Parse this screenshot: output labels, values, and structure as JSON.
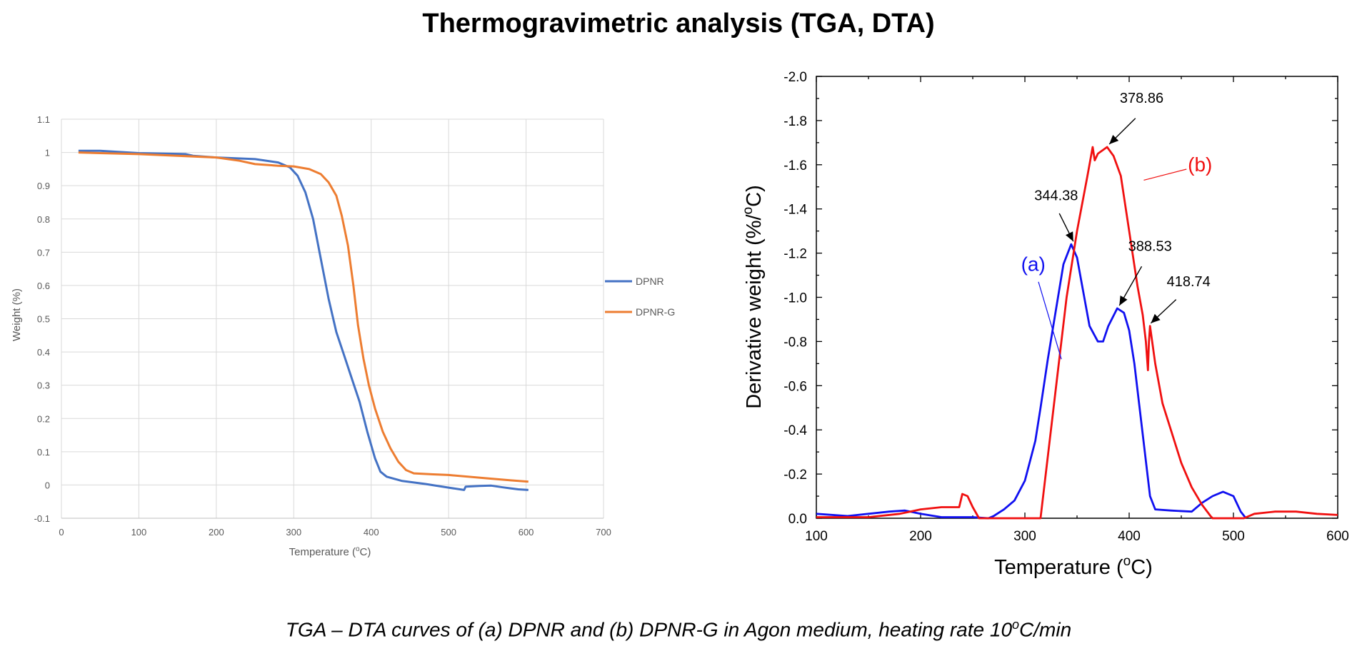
{
  "page": {
    "title": "Thermogravimetric analysis (TGA, DTA)",
    "caption_pre": "TGA – DTA curves of (a) DPNR and (b) DPNR-G in Agon medium, heating rate 10",
    "caption_sup": "o",
    "caption_post": "C/min"
  },
  "chart_data": [
    {
      "type": "line",
      "xlabel_pre": "Temperature (",
      "xlabel_sup": "o",
      "xlabel_post": "C)",
      "ylabel": "Weight (%)",
      "xlim": [
        0,
        700
      ],
      "ylim": [
        -0.1,
        1.1
      ],
      "xticks": [
        0,
        100,
        200,
        300,
        400,
        500,
        600,
        700
      ],
      "yticks": [
        -0.1,
        0,
        0.1,
        0.2,
        0.3,
        0.4,
        0.5,
        0.6,
        0.7,
        0.8,
        0.9,
        1,
        1.1
      ],
      "ytick_labels": [
        "-0.1",
        "0",
        "0.1",
        "0.2",
        "0.3",
        "0.4",
        "0.5",
        "0.6",
        "0.7",
        "0.8",
        "0.9",
        "1",
        "1.1"
      ],
      "grid": true,
      "legend_position": "right",
      "series": [
        {
          "name": "DPNR",
          "color": "#4472C4",
          "points": [
            [
              22,
              1.005
            ],
            [
              50,
              1.005
            ],
            [
              100,
              0.998
            ],
            [
              160,
              0.995
            ],
            [
              170,
              0.99
            ],
            [
              200,
              0.985
            ],
            [
              250,
              0.98
            ],
            [
              280,
              0.97
            ],
            [
              295,
              0.955
            ],
            [
              305,
              0.93
            ],
            [
              315,
              0.88
            ],
            [
              325,
              0.8
            ],
            [
              335,
              0.68
            ],
            [
              345,
              0.56
            ],
            [
              355,
              0.46
            ],
            [
              365,
              0.39
            ],
            [
              375,
              0.32
            ],
            [
              385,
              0.25
            ],
            [
              395,
              0.16
            ],
            [
              405,
              0.08
            ],
            [
              412,
              0.04
            ],
            [
              420,
              0.025
            ],
            [
              440,
              0.012
            ],
            [
              470,
              0.003
            ],
            [
              500,
              -0.008
            ],
            [
              520,
              -0.015
            ],
            [
              522,
              -0.005
            ],
            [
              540,
              -0.003
            ],
            [
              555,
              -0.002
            ],
            [
              570,
              -0.007
            ],
            [
              580,
              -0.01
            ],
            [
              590,
              -0.013
            ],
            [
              603,
              -0.015
            ]
          ]
        },
        {
          "name": "DPNR-G",
          "color": "#ED7D31",
          "points": [
            [
              22,
              1.0
            ],
            [
              50,
              0.998
            ],
            [
              100,
              0.995
            ],
            [
              150,
              0.99
            ],
            [
              200,
              0.985
            ],
            [
              230,
              0.975
            ],
            [
              250,
              0.965
            ],
            [
              280,
              0.96
            ],
            [
              300,
              0.958
            ],
            [
              320,
              0.95
            ],
            [
              335,
              0.935
            ],
            [
              345,
              0.91
            ],
            [
              355,
              0.87
            ],
            [
              362,
              0.81
            ],
            [
              370,
              0.72
            ],
            [
              377,
              0.6
            ],
            [
              383,
              0.48
            ],
            [
              390,
              0.38
            ],
            [
              397,
              0.3
            ],
            [
              405,
              0.23
            ],
            [
              415,
              0.16
            ],
            [
              425,
              0.11
            ],
            [
              435,
              0.07
            ],
            [
              445,
              0.045
            ],
            [
              455,
              0.035
            ],
            [
              480,
              0.032
            ],
            [
              500,
              0.03
            ],
            [
              550,
              0.02
            ],
            [
              580,
              0.014
            ],
            [
              603,
              0.01
            ]
          ]
        }
      ]
    },
    {
      "type": "line",
      "xlabel_pre": "Temperature (",
      "xlabel_sup": "o",
      "xlabel_post": "C)",
      "ylabel_pre": "Derivative weight (%/",
      "ylabel_sup": "o",
      "ylabel_post": "C)",
      "xlim": [
        100,
        600
      ],
      "ylim": [
        0,
        -2.0
      ],
      "y_axis_reversed": true,
      "xticks": [
        100,
        200,
        300,
        400,
        500,
        600
      ],
      "yticks": [
        0,
        -0.2,
        -0.4,
        -0.6,
        -0.8,
        -1.0,
        -1.2,
        -1.4,
        -1.6,
        -1.8,
        -2.0
      ],
      "ytick_labels": [
        "0.0",
        "-0.2",
        "-0.4",
        "-0.6",
        "-0.8",
        "-1.0",
        "-1.2",
        "-1.4",
        "-1.6",
        "-1.8",
        "-2.0"
      ],
      "grid": false,
      "series": [
        {
          "label": "(a)",
          "color": "#1010F0",
          "points": [
            [
              100,
              -0.02
            ],
            [
              130,
              -0.01
            ],
            [
              170,
              -0.03
            ],
            [
              185,
              -0.035
            ],
            [
              200,
              -0.02
            ],
            [
              220,
              -0.005
            ],
            [
              250,
              -0.005
            ],
            [
              265,
              0
            ],
            [
              270,
              -0.01
            ],
            [
              280,
              -0.04
            ],
            [
              290,
              -0.08
            ],
            [
              300,
              -0.17
            ],
            [
              310,
              -0.35
            ],
            [
              315,
              -0.5
            ],
            [
              322,
              -0.72
            ],
            [
              330,
              -0.95
            ],
            [
              337,
              -1.15
            ],
            [
              344.38,
              -1.24
            ],
            [
              350,
              -1.18
            ],
            [
              355,
              -1.05
            ],
            [
              362,
              -0.87
            ],
            [
              370,
              -0.8
            ],
            [
              375,
              -0.8
            ],
            [
              380,
              -0.87
            ],
            [
              388.53,
              -0.95
            ],
            [
              395,
              -0.93
            ],
            [
              400,
              -0.85
            ],
            [
              405,
              -0.7
            ],
            [
              410,
              -0.5
            ],
            [
              415,
              -0.3
            ],
            [
              420,
              -0.1
            ],
            [
              425,
              -0.04
            ],
            [
              440,
              -0.035
            ],
            [
              460,
              -0.03
            ],
            [
              470,
              -0.07
            ],
            [
              480,
              -0.1
            ],
            [
              490,
              -0.12
            ],
            [
              500,
              -0.1
            ],
            [
              507,
              -0.03
            ],
            [
              512,
              0
            ]
          ]
        },
        {
          "label": "(b)",
          "color": "#F01010",
          "points": [
            [
              100,
              -0.005
            ],
            [
              150,
              -0.005
            ],
            [
              180,
              -0.02
            ],
            [
              200,
              -0.04
            ],
            [
              220,
              -0.05
            ],
            [
              237,
              -0.05
            ],
            [
              240,
              -0.11
            ],
            [
              245,
              -0.1
            ],
            [
              250,
              -0.05
            ],
            [
              256,
              0
            ],
            [
              315,
              0
            ],
            [
              320,
              -0.2
            ],
            [
              330,
              -0.6
            ],
            [
              340,
              -1.0
            ],
            [
              350,
              -1.3
            ],
            [
              360,
              -1.55
            ],
            [
              365,
              -1.68
            ],
            [
              367,
              -1.62
            ],
            [
              370,
              -1.65
            ],
            [
              378.86,
              -1.68
            ],
            [
              385,
              -1.64
            ],
            [
              392,
              -1.55
            ],
            [
              400,
              -1.3
            ],
            [
              408,
              -1.05
            ],
            [
              413,
              -0.92
            ],
            [
              416,
              -0.8
            ],
            [
              418,
              -0.67
            ],
            [
              419,
              -0.8
            ],
            [
              420,
              -0.87
            ],
            [
              425,
              -0.7
            ],
            [
              432,
              -0.52
            ],
            [
              440,
              -0.4
            ],
            [
              450,
              -0.25
            ],
            [
              460,
              -0.14
            ],
            [
              470,
              -0.06
            ],
            [
              478,
              -0.01
            ],
            [
              480,
              0
            ],
            [
              510,
              0
            ],
            [
              520,
              -0.02
            ],
            [
              540,
              -0.03
            ],
            [
              560,
              -0.03
            ],
            [
              580,
              -0.02
            ],
            [
              600,
              -0.015
            ]
          ]
        }
      ],
      "annotations": [
        {
          "label": "344.38",
          "x": 344.38,
          "y": -1.24
        },
        {
          "label": "378.86",
          "x": 378.86,
          "y": -1.68
        },
        {
          "label": "388.53",
          "x": 388.53,
          "y": -0.95
        },
        {
          "label": "418.74",
          "x": 418.74,
          "y": -0.87
        }
      ]
    }
  ]
}
